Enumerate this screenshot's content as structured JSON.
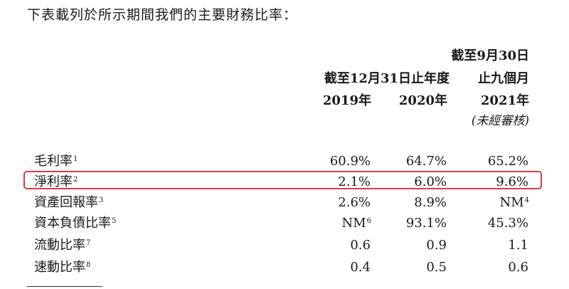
{
  "intro": "下表載列於所示期間我們的主要財務比率：",
  "header": {
    "period_9m_line1": "截至9月30日",
    "period_9m_line2": "止九個月",
    "period_fy": "截至12月31日止年度",
    "years": [
      "2019年",
      "2020年",
      "2021年"
    ],
    "unaudited": "(未經審核)"
  },
  "rows": [
    {
      "label": "毛利率",
      "note": "1",
      "values": [
        "60.9%",
        "64.7%",
        "65.2%"
      ],
      "notes": [
        "",
        "",
        ""
      ]
    },
    {
      "label": "淨利率",
      "note": "2",
      "values": [
        "2.1%",
        "6.0%",
        "9.6%"
      ],
      "notes": [
        "",
        "",
        ""
      ]
    },
    {
      "label": "資產回報率",
      "note": "3",
      "values": [
        "2.6%",
        "8.9%",
        "NM"
      ],
      "notes": [
        "",
        "",
        "4"
      ]
    },
    {
      "label": "資本負債比率",
      "note": "5",
      "values": [
        "NM",
        "93.1%",
        "45.3%"
      ],
      "notes": [
        "6",
        "",
        ""
      ]
    },
    {
      "label": "流動比率",
      "note": "7",
      "values": [
        "0.6",
        "0.9",
        "1.1"
      ],
      "notes": [
        "",
        "",
        ""
      ]
    },
    {
      "label": "速動比率",
      "note": "8",
      "values": [
        "0.4",
        "0.5",
        "0.6"
      ],
      "notes": [
        "",
        "",
        ""
      ]
    }
  ],
  "highlight_color": "#e23a3a"
}
